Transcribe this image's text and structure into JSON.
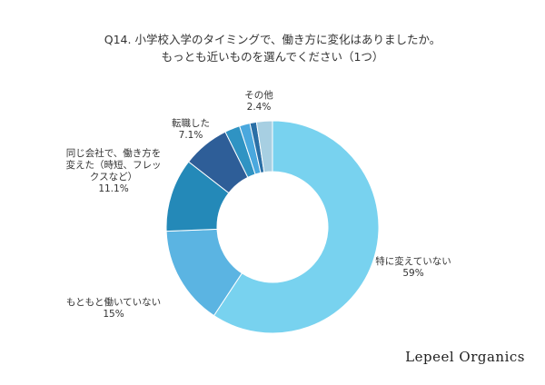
{
  "chart_data": {
    "type": "pie",
    "donut": true,
    "title_lines": [
      "Q14. 小学校入学のタイミングで、働き方に変化はありましたか。",
      "もっとも近いものを選んでください（1つ）"
    ],
    "series": [
      {
        "name": "特に変えていない",
        "value": 59,
        "value_label": "59%",
        "color": "#78d2ef"
      },
      {
        "name": "もともと働いていない",
        "value": 15,
        "value_label": "15%",
        "color": "#5bb4e2"
      },
      {
        "name": "同じ会社で、働き方を変えた（時短、フレックスなど）",
        "value": 11.1,
        "value_label": "11.1%",
        "color": "#2489b8"
      },
      {
        "name": "転職した",
        "value": 7.1,
        "value_label": "7.1%",
        "color": "#2e5e98"
      },
      {
        "name": "",
        "value": 2.3,
        "value_label": "",
        "color": "#2f93c3"
      },
      {
        "name": "",
        "value": 1.6,
        "value_label": "",
        "color": "#4aa8de"
      },
      {
        "name": "",
        "value": 1.0,
        "value_label": "",
        "color": "#2a6fa6"
      },
      {
        "name": "その他",
        "value": 2.4,
        "value_label": "2.4%",
        "color": "#a7cfe2"
      }
    ]
  },
  "labels": {
    "none": {
      "name": "特に変えていない",
      "value": "59%"
    },
    "not_working": {
      "name": "もともと働いていない",
      "value": "15%"
    },
    "same_company": {
      "line1": "同じ会社で、働き方を",
      "line2": "変えた（時短、フレッ",
      "line3": "クスなど）",
      "value": "11.1%"
    },
    "job_change": {
      "name": "転職した",
      "value": "7.1%"
    },
    "other": {
      "name": "その他",
      "value": "2.4%"
    }
  },
  "brand": "Lepeel Organics"
}
